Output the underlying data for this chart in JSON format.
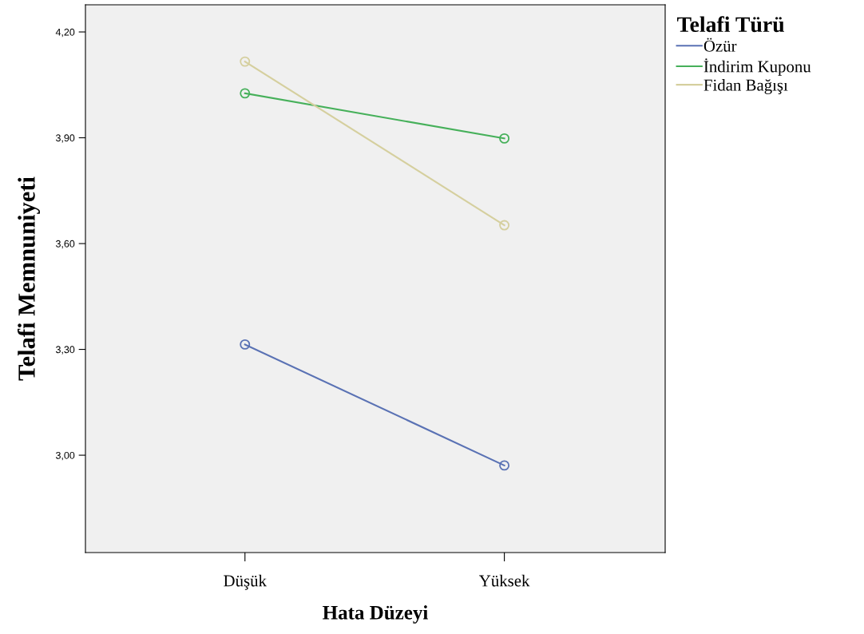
{
  "chart_data": {
    "type": "line",
    "xlabel": "Hata Düzeyi",
    "ylabel": "Telafi Memnuniyeti",
    "legend_title": "Telafi Türü",
    "categories": [
      "Düşük",
      "Yüksek"
    ],
    "series": [
      {
        "name": "Özür",
        "color": "#5a72b4",
        "values": [
          3.314,
          2.971
        ]
      },
      {
        "name": "İndirim Kuponu",
        "color": "#46b05a",
        "values": [
          4.026,
          3.898
        ]
      },
      {
        "name": "Fidan Bağışı",
        "color": "#d5cf9e",
        "values": [
          4.116,
          3.652
        ]
      }
    ],
    "ylim": [
      2.724,
      4.277
    ],
    "yticks": [
      {
        "value": 3.0,
        "label": "3,00"
      },
      {
        "value": 3.3,
        "label": "3,30"
      },
      {
        "value": 3.6,
        "label": "3,60"
      },
      {
        "value": 3.9,
        "label": "3,90"
      },
      {
        "value": 4.2,
        "label": "4,20"
      }
    ],
    "marker": "circle",
    "legend": "top right",
    "grid": false
  }
}
